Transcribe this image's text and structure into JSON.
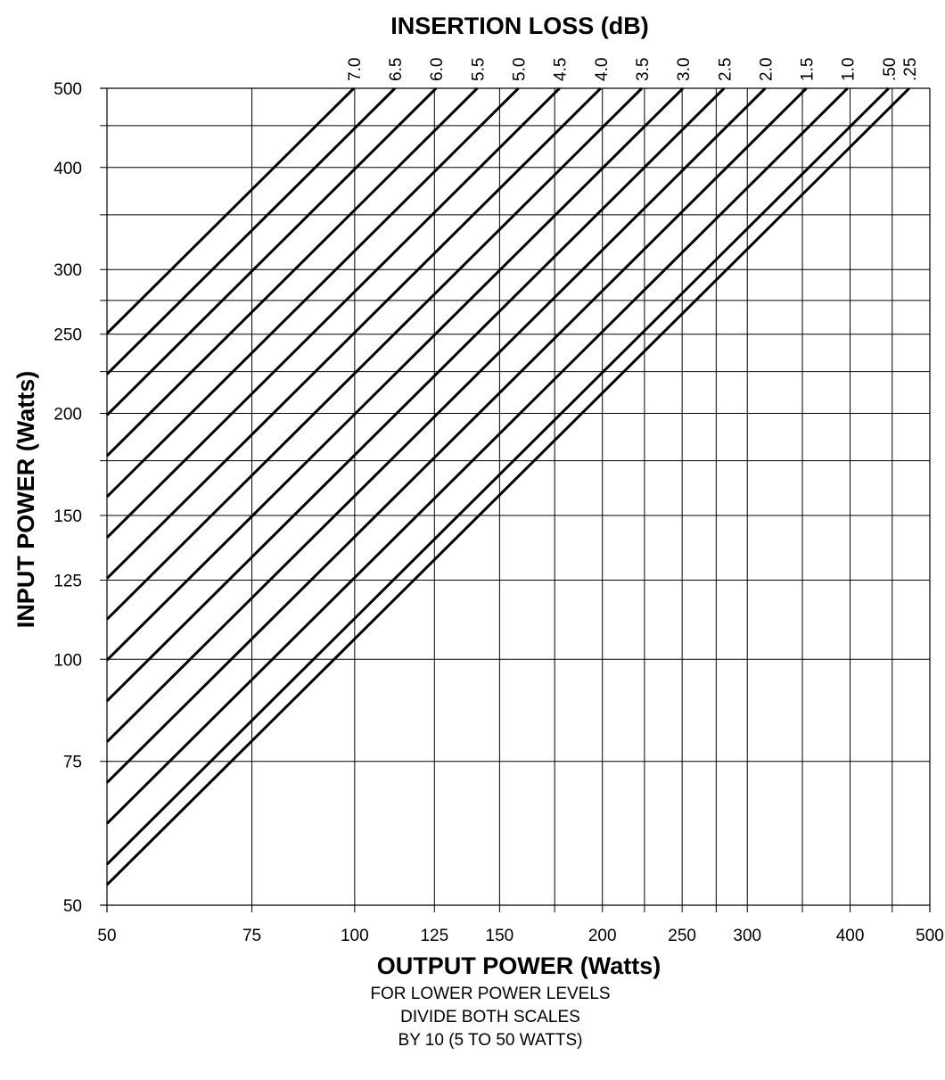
{
  "chart_data": {
    "type": "line",
    "title": "INSERTION LOSS (dB)",
    "xlabel": "OUTPUT POWER (Watts)",
    "ylabel": "INPUT POWER (Watts)",
    "note_lines": [
      "FOR LOWER POWER LEVELS",
      "DIVIDE BOTH SCALES",
      "BY 10 (5 TO 50 WATTS)"
    ],
    "x_scale": "log",
    "y_scale": "log",
    "xlim": [
      50,
      500
    ],
    "ylim": [
      50,
      500
    ],
    "x_ticks": [
      50,
      75,
      100,
      125,
      150,
      200,
      250,
      300,
      400,
      500
    ],
    "y_ticks": [
      50,
      75,
      100,
      125,
      150,
      200,
      250,
      300,
      400,
      500
    ],
    "x_grid": [
      75,
      100,
      125,
      150,
      175,
      200,
      225,
      250,
      275,
      300,
      350,
      400,
      450
    ],
    "y_grid": [
      75,
      100,
      125,
      150,
      175,
      200,
      225,
      250,
      275,
      300,
      350,
      400,
      450
    ],
    "grid": true,
    "series_labels": [
      "7.0",
      "6.5",
      "6.0",
      "5.5",
      "5.0",
      "4.5",
      "4.0",
      "3.5",
      "3.0",
      "2.5",
      "2.0",
      "1.5",
      "1.0",
      ".50",
      ".25"
    ],
    "series": [
      {
        "name": "7.0",
        "loss_db": 7.0
      },
      {
        "name": "6.5",
        "loss_db": 6.5
      },
      {
        "name": "6.0",
        "loss_db": 6.0
      },
      {
        "name": "5.5",
        "loss_db": 5.5
      },
      {
        "name": "5.0",
        "loss_db": 5.0
      },
      {
        "name": "4.5",
        "loss_db": 4.5
      },
      {
        "name": "4.0",
        "loss_db": 4.0
      },
      {
        "name": "3.5",
        "loss_db": 3.5
      },
      {
        "name": "3.0",
        "loss_db": 3.0
      },
      {
        "name": "2.5",
        "loss_db": 2.5
      },
      {
        "name": "2.0",
        "loss_db": 2.0
      },
      {
        "name": "1.5",
        "loss_db": 1.5
      },
      {
        "name": "1.0",
        "loss_db": 1.0
      },
      {
        "name": ".50",
        "loss_db": 0.5
      },
      {
        "name": ".25",
        "loss_db": 0.25
      }
    ]
  }
}
